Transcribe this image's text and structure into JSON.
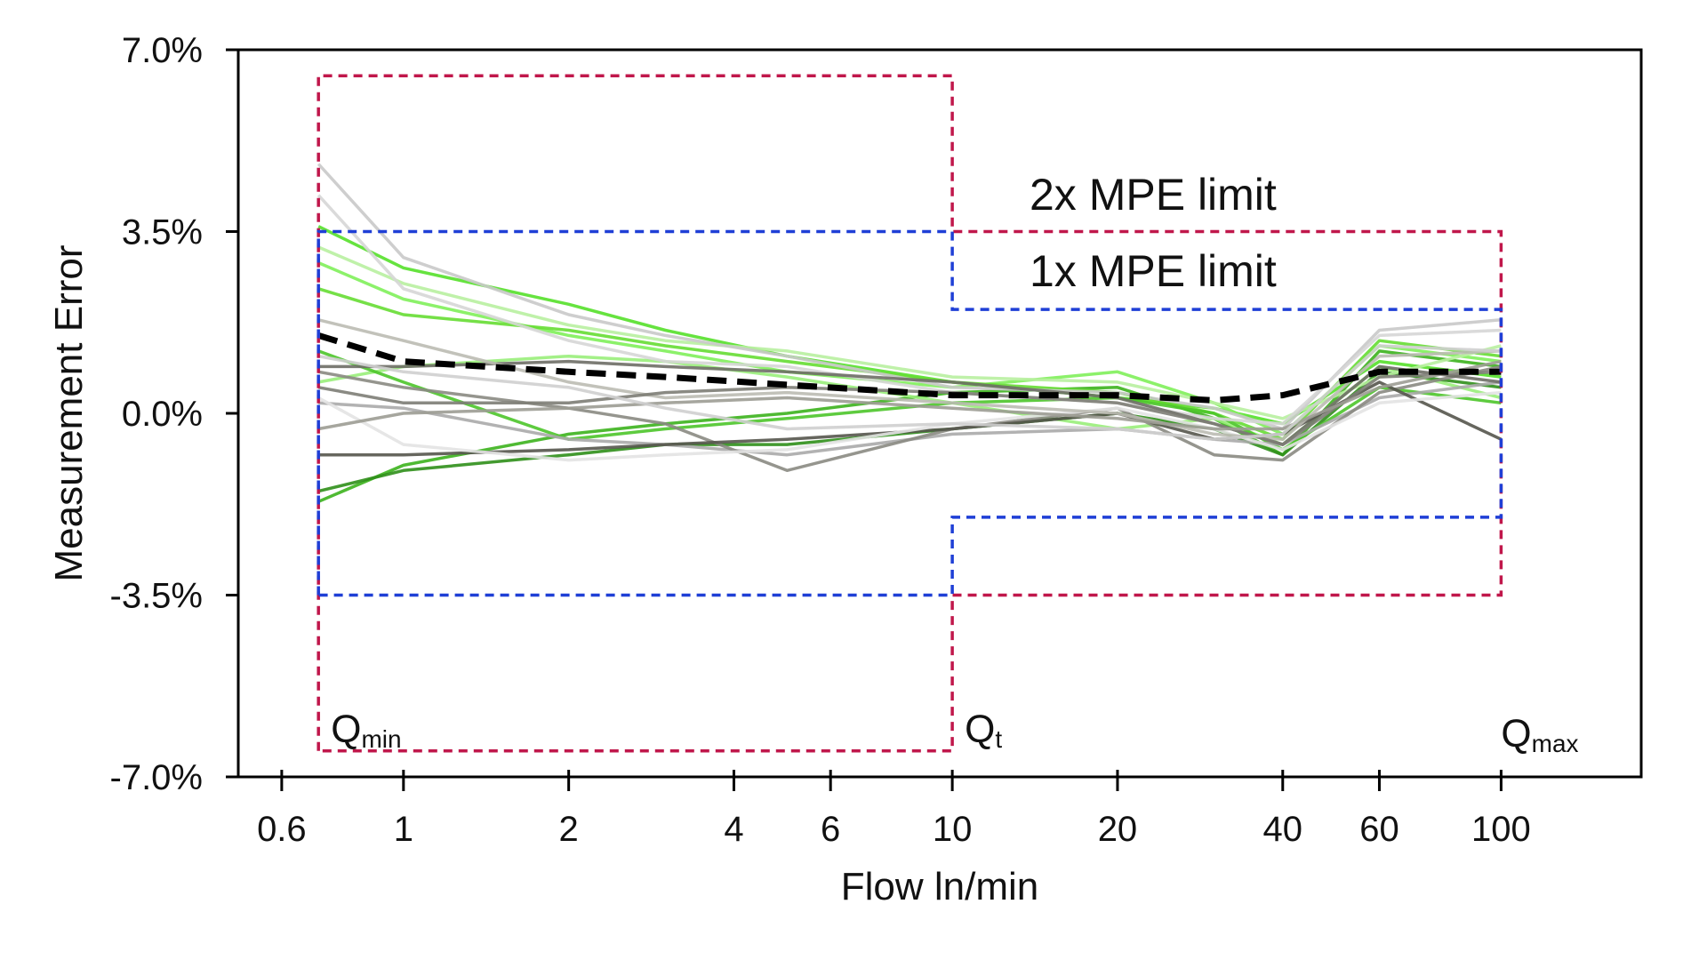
{
  "chart_data": {
    "type": "line",
    "title": "",
    "xlabel": "Flow ln/min",
    "ylabel": "Measurement Error",
    "x_scale": "log",
    "xlim": [
      0.5,
      180
    ],
    "ylim": [
      -7.0,
      7.0
    ],
    "x_ticks": [
      0.6,
      1,
      2,
      4,
      6,
      10,
      20,
      40,
      60,
      100
    ],
    "x_tick_labels": [
      "0.6",
      "1",
      "2",
      "4",
      "6",
      "10",
      "20",
      "40",
      "60",
      "100"
    ],
    "y_ticks": [
      7.0,
      3.5,
      0.0,
      -3.5,
      -7.0
    ],
    "y_tick_labels": [
      "7.0%",
      "3.5%",
      "0.0%",
      "-3.5%",
      "-7.0%"
    ],
    "x": [
      0.7,
      1,
      2,
      3,
      5,
      10,
      20,
      30,
      40,
      60,
      100
    ],
    "mean_series": {
      "style": "black-dashed-thick",
      "values": [
        1.5,
        1.0,
        0.8,
        0.7,
        0.55,
        0.35,
        0.35,
        0.25,
        0.35,
        0.8,
        0.8
      ]
    },
    "series": [
      {
        "color": "#55e02a",
        "values": [
          3.6,
          2.8,
          2.1,
          1.6,
          1.1,
          0.6,
          0.3,
          0.1,
          -0.2,
          1.0,
          0.7
        ]
      },
      {
        "color": "#3cb31d",
        "values": [
          -1.7,
          -1.0,
          -0.4,
          -0.2,
          0.0,
          0.4,
          0.5,
          -0.1,
          -0.8,
          1.2,
          0.9
        ]
      },
      {
        "color": "#7ff05a",
        "values": [
          2.9,
          2.2,
          1.5,
          1.2,
          0.8,
          0.5,
          0.8,
          0.2,
          -0.4,
          1.3,
          1.0
        ]
      },
      {
        "color": "#99ee7a",
        "values": [
          0.6,
          0.9,
          1.1,
          1.0,
          0.7,
          0.2,
          -0.3,
          -0.1,
          -0.6,
          0.9,
          0.3
        ]
      },
      {
        "color": "#2f8f1a",
        "values": [
          -1.5,
          -1.1,
          -0.8,
          -0.6,
          -0.6,
          -0.3,
          0.0,
          -0.3,
          -0.8,
          0.8,
          0.5
        ]
      },
      {
        "color": "#66dd33",
        "values": [
          2.4,
          1.9,
          1.6,
          1.3,
          1.0,
          0.6,
          0.4,
          0.0,
          -0.5,
          1.4,
          1.1
        ]
      },
      {
        "color": "#4dc52a",
        "values": [
          1.2,
          0.6,
          -0.5,
          -0.3,
          -0.1,
          0.2,
          0.3,
          0.0,
          -0.7,
          0.5,
          0.2
        ]
      },
      {
        "color": "#b8f0a0",
        "values": [
          3.2,
          2.5,
          1.7,
          1.4,
          1.2,
          0.7,
          0.6,
          0.2,
          -0.1,
          0.7,
          1.3
        ]
      },
      {
        "color": "#c9c9c9",
        "values": [
          4.8,
          3.0,
          1.9,
          1.5,
          1.1,
          0.5,
          0.4,
          0.1,
          -0.3,
          1.6,
          1.8
        ]
      },
      {
        "color": "#d6d6d6",
        "values": [
          4.2,
          2.4,
          1.4,
          1.0,
          0.9,
          0.4,
          0.2,
          -0.1,
          -0.2,
          1.5,
          1.6
        ]
      },
      {
        "color": "#aaaaaa",
        "values": [
          0.2,
          0.1,
          -0.5,
          -0.6,
          -0.8,
          -0.4,
          -0.3,
          -0.5,
          -0.6,
          0.3,
          0.6
        ]
      },
      {
        "color": "#8a8a82",
        "values": [
          0.8,
          0.5,
          0.1,
          -0.2,
          -1.1,
          -0.3,
          0.1,
          -0.8,
          -0.9,
          0.4,
          0.9
        ]
      },
      {
        "color": "#6e6e66",
        "values": [
          0.9,
          0.9,
          1.0,
          0.9,
          0.8,
          0.6,
          0.3,
          -0.2,
          -0.6,
          0.9,
          0.6
        ]
      },
      {
        "color": "#55554d",
        "values": [
          -0.8,
          -0.8,
          -0.7,
          -0.6,
          -0.5,
          -0.3,
          0.0,
          -0.5,
          -0.4,
          0.6,
          -0.5
        ]
      },
      {
        "color": "#e3e3e3",
        "values": [
          0.3,
          -0.6,
          -0.9,
          -0.8,
          -0.7,
          -0.2,
          0.1,
          -0.3,
          -0.7,
          0.2,
          0.4
        ]
      },
      {
        "color": "#bbbbb3",
        "values": [
          1.8,
          1.4,
          0.6,
          0.3,
          0.4,
          0.2,
          0.0,
          -0.4,
          -0.5,
          1.1,
          1.2
        ]
      },
      {
        "color": "#7d7d75",
        "values": [
          0.5,
          0.2,
          0.2,
          0.4,
          0.5,
          0.4,
          0.2,
          -0.2,
          -0.6,
          0.7,
          0.8
        ]
      },
      {
        "color": "#9c9c94",
        "values": [
          -0.3,
          0.0,
          0.1,
          0.2,
          0.3,
          0.1,
          -0.1,
          -0.3,
          -0.3,
          0.5,
          1.0
        ]
      },
      {
        "color": "#cfcfcf",
        "values": [
          1.1,
          0.8,
          0.5,
          0.1,
          -0.3,
          -0.2,
          -0.3,
          -0.5,
          -0.4,
          1.3,
          1.2
        ]
      }
    ],
    "limits": {
      "mpe_2x": {
        "label": "2x MPE limit",
        "color": "#c0174b",
        "segments": [
          {
            "x_from": 0.7,
            "x_to": 10,
            "upper": 6.5,
            "lower": -6.5
          },
          {
            "x_from": 10,
            "x_to": 100,
            "upper": 3.5,
            "lower": -3.5
          }
        ]
      },
      "mpe_1x": {
        "label": "1x MPE limit",
        "color": "#1f3fd6",
        "segments": [
          {
            "x_from": 0.7,
            "x_to": 10,
            "upper": 3.5,
            "lower": -3.5
          },
          {
            "x_from": 10,
            "x_to": 100,
            "upper": 2.0,
            "lower": -2.0
          }
        ]
      }
    },
    "flow_markers": [
      {
        "main": "Q",
        "sub": "min",
        "x": 0.7
      },
      {
        "main": "Q",
        "sub": "t",
        "x": 10
      },
      {
        "main": "Q",
        "sub": "max",
        "x": 100
      }
    ]
  }
}
